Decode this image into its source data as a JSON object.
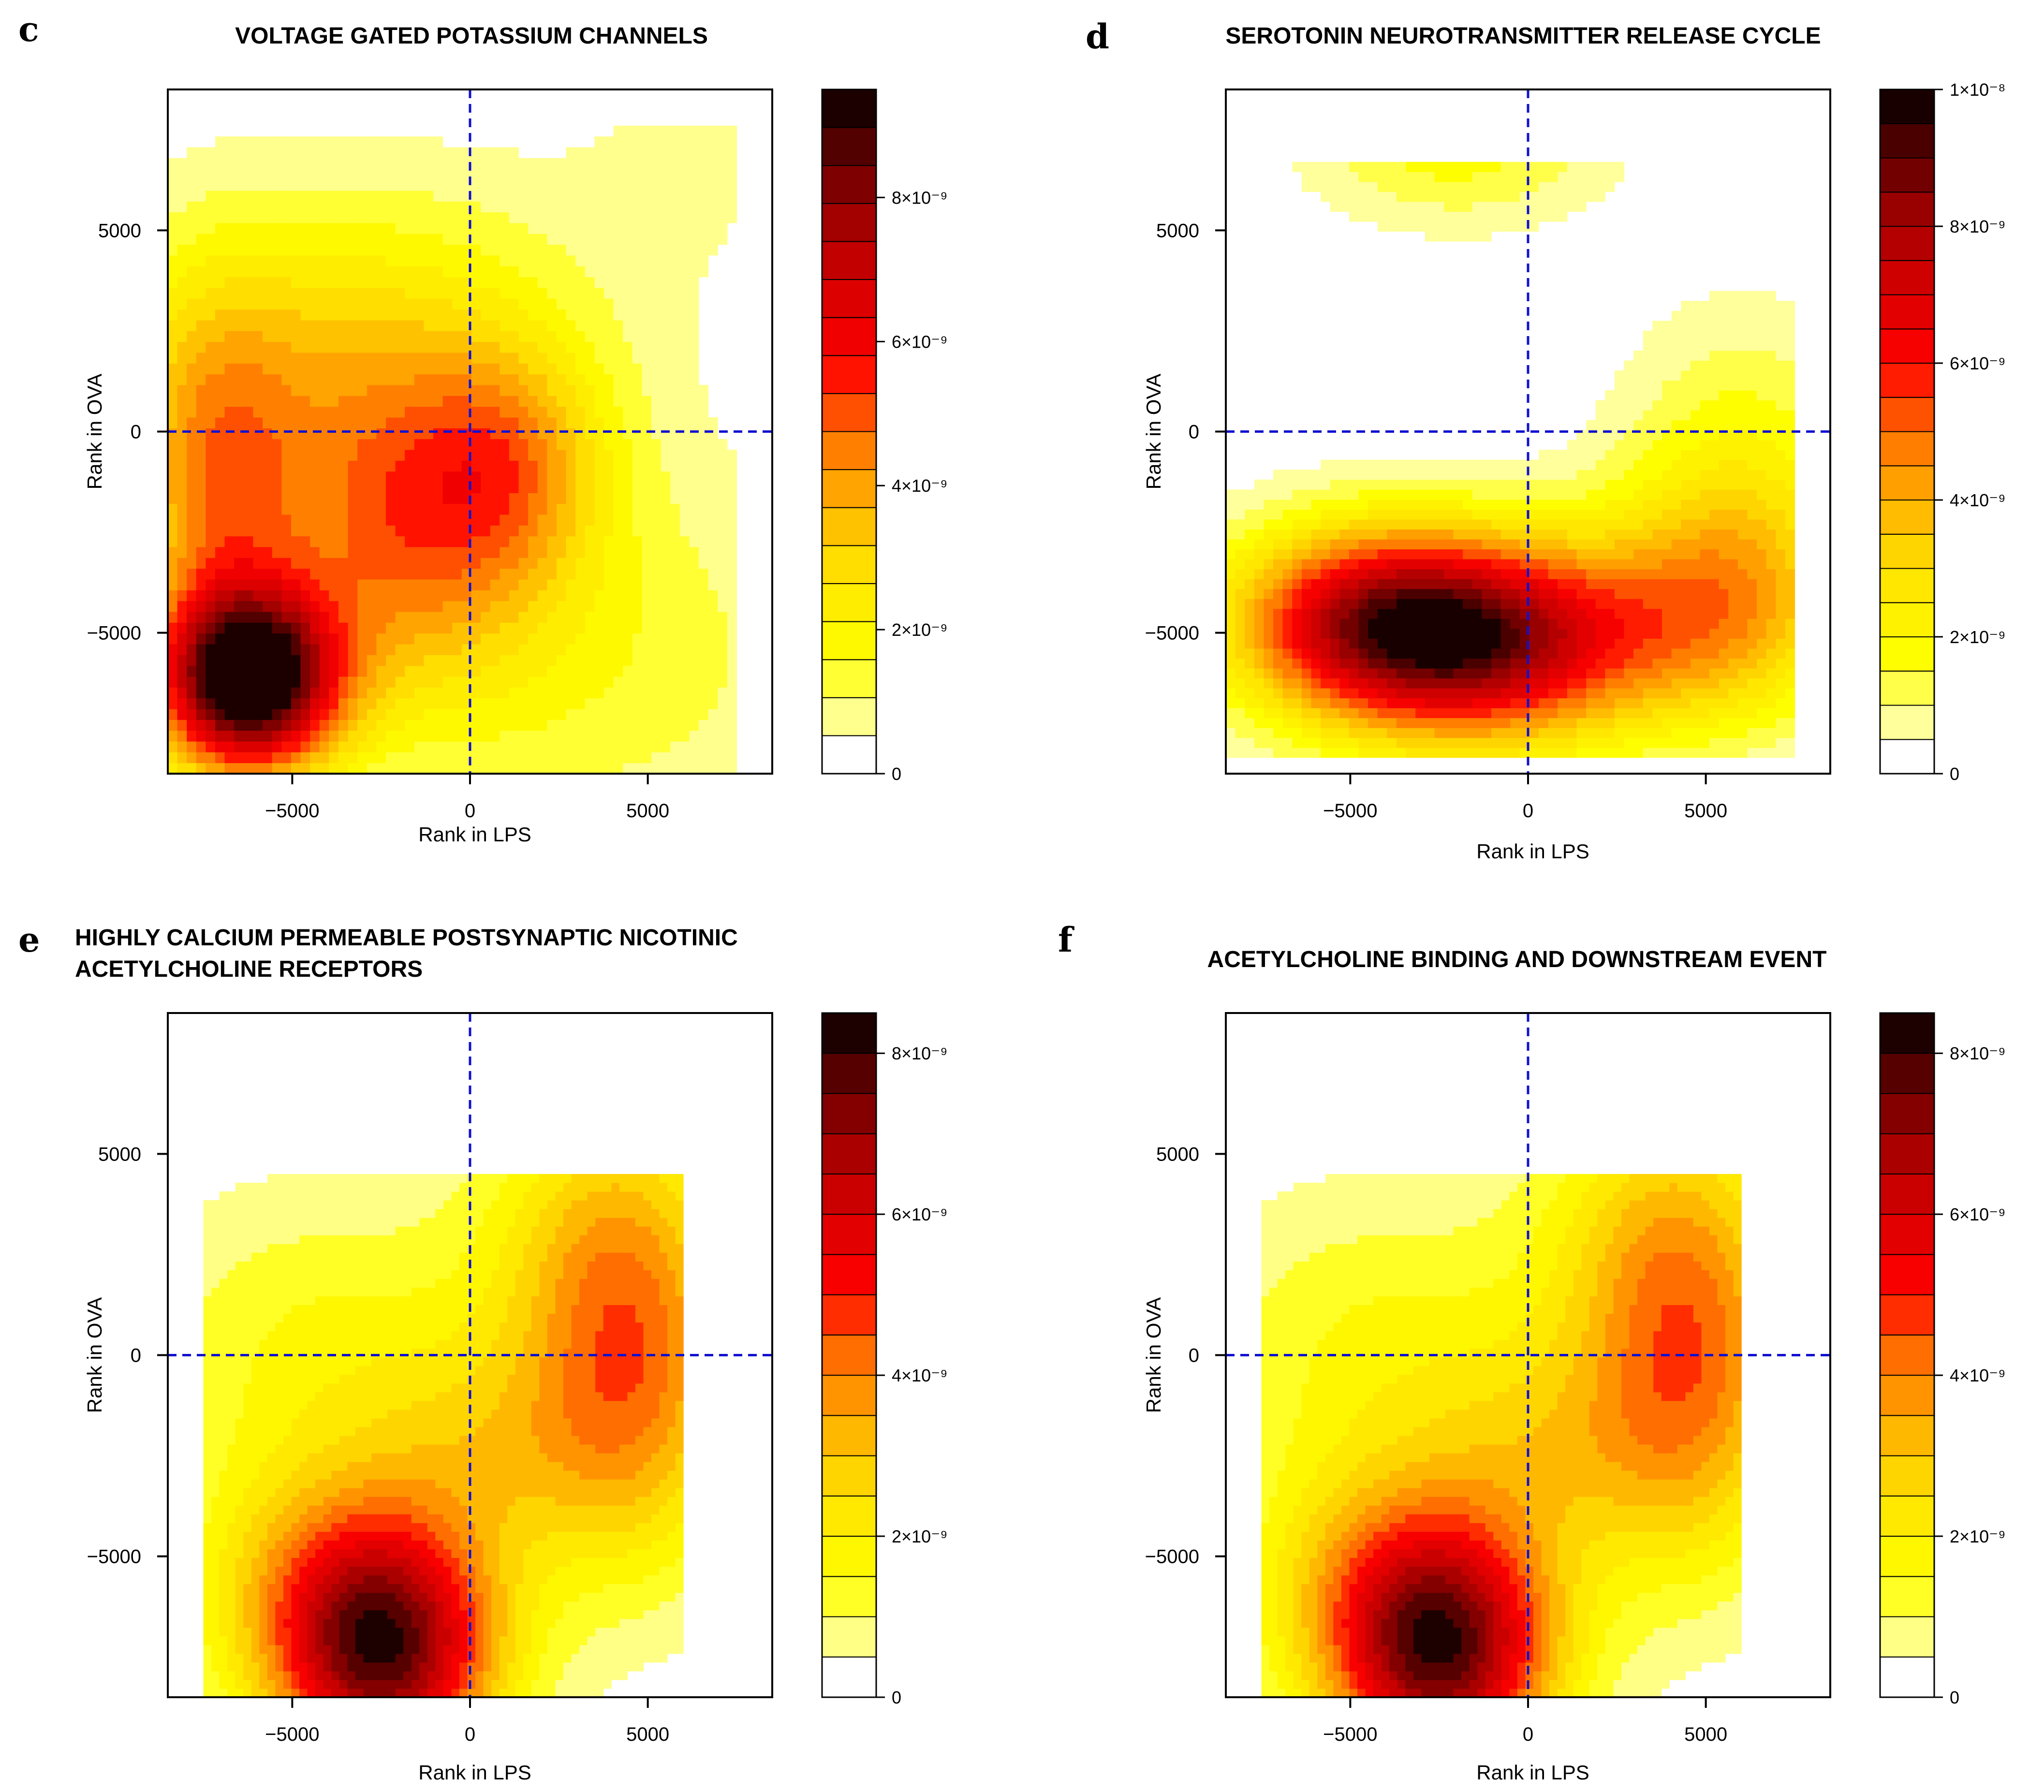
{
  "panels": [
    {
      "letter": "c",
      "title_lines": [
        "VOLTAGE GATED POTASSIUM CHANNELS"
      ],
      "xlabel": "Rank in LPS",
      "ylabel": "Rank in OVA",
      "x_ticks": [
        "−5000",
        "0",
        "5000"
      ],
      "y_ticks": [
        "5000",
        "0",
        "−5000"
      ],
      "colorbar_ticks": [
        "8×10⁻⁹",
        "6×10⁻⁹",
        "4×10⁻⁹",
        "2×10⁻⁹",
        "0"
      ]
    },
    {
      "letter": "d",
      "title_lines": [
        "SEROTONIN NEUROTRANSMITTER RELEASE CYCLE"
      ],
      "xlabel": "Rank in LPS",
      "ylabel": "Rank in OVA",
      "x_ticks": [
        "−5000",
        "0",
        "5000"
      ],
      "y_ticks": [
        "5000",
        "0",
        "−5000"
      ],
      "colorbar_ticks": [
        "1×10⁻⁸",
        "8×10⁻⁹",
        "6×10⁻⁹",
        "4×10⁻⁹",
        "2×10⁻⁹",
        "0"
      ]
    },
    {
      "letter": "e",
      "title_lines": [
        "HIGHLY CALCIUM PERMEABLE POSTSYNAPTIC NICOTINIC",
        "ACETYLCHOLINE RECEPTORS"
      ],
      "xlabel": "Rank in LPS",
      "ylabel": "Rank in OVA",
      "x_ticks": [
        "−5000",
        "0",
        "5000"
      ],
      "y_ticks": [
        "5000",
        "0",
        "−5000"
      ],
      "colorbar_ticks": [
        "8×10⁻⁹",
        "6×10⁻⁹",
        "4×10⁻⁹",
        "2×10⁻⁹",
        "0"
      ]
    },
    {
      "letter": "f",
      "title_lines": [
        "ACETYLCHOLINE BINDING AND DOWNSTREAM EVENT"
      ],
      "xlabel": "Rank in LPS",
      "ylabel": "Rank in OVA",
      "x_ticks": [
        "−5000",
        "0",
        "5000"
      ],
      "y_ticks": [
        "5000",
        "0",
        "−5000"
      ],
      "colorbar_ticks": [
        "8×10⁻⁹",
        "6×10⁻⁹",
        "4×10⁻⁹",
        "2×10⁻⁹",
        "0"
      ]
    }
  ],
  "chart_data": [
    {
      "type": "heatmap",
      "title": "VOLTAGE GATED POTASSIUM CHANNELS",
      "xlabel": "Rank in LPS",
      "ylabel": "Rank in OVA",
      "xlim": [
        -8500,
        8500
      ],
      "ylim": [
        -8500,
        8500
      ],
      "data_extent": {
        "x": [
          -8500,
          7500
        ],
        "y": [
          -8500,
          7600
        ]
      },
      "zlim": [
        0,
        9.5e-09
      ],
      "levels": 18,
      "reference_lines": {
        "x": 0,
        "y": 0,
        "color": "#1010d0",
        "style": "dashed"
      },
      "colorbar_ticks": [
        0,
        2e-09,
        4e-09,
        6e-09,
        8e-09
      ],
      "components": [
        {
          "x": -6200,
          "y": -6200,
          "sx": 1800,
          "sy": 1600,
          "amp": 9.5e-09
        },
        {
          "x": -7200,
          "y": -1500,
          "sx": 1800,
          "sy": 3500,
          "amp": 3.5e-09
        },
        {
          "x": -1800,
          "y": -2500,
          "sx": 2600,
          "sy": 2800,
          "amp": 3.5e-09
        },
        {
          "x": 1300,
          "y": -800,
          "sx": 1800,
          "sy": 2000,
          "amp": 2.2e-09
        },
        {
          "x": -3000,
          "y": 2000,
          "sx": 4500,
          "sy": 3000,
          "amp": 2.5e-09
        },
        {
          "x": 3000,
          "y": -5500,
          "sx": 5000,
          "sy": 3500,
          "amp": 1.5e-09
        },
        {
          "x": 6800,
          "y": 7600,
          "sx": 3000,
          "sy": 3000,
          "amp": 6e-10
        }
      ]
    },
    {
      "type": "heatmap",
      "title": "SEROTONIN NEUROTRANSMITTER RELEASE CYCLE",
      "xlabel": "Rank in LPS",
      "ylabel": "Rank in OVA",
      "xlim": [
        -8500,
        8500
      ],
      "ylim": [
        -8500,
        8500
      ],
      "data_extent": {
        "x": [
          -8500,
          7500
        ],
        "y": [
          -8100,
          6700
        ]
      },
      "zlim": [
        0,
        1e-08
      ],
      "levels": 20,
      "reference_lines": {
        "x": 0,
        "y": 0,
        "color": "#1010d0",
        "style": "dashed"
      },
      "colorbar_ticks": [
        0,
        2e-09,
        4e-09,
        6e-09,
        8e-09,
        1e-08
      ],
      "components": [
        {
          "x": -1000,
          "y": -5200,
          "sx": 3200,
          "sy": 1800,
          "amp": 7.5e-09
        },
        {
          "x": -4800,
          "y": -4700,
          "sx": 2800,
          "sy": 1700,
          "amp": 5.5e-09
        },
        {
          "x": 5500,
          "y": -4500,
          "sx": 2500,
          "sy": 2000,
          "amp": 3e-09
        },
        {
          "x": 6000,
          "y": -1500,
          "sx": 2500,
          "sy": 3000,
          "amp": 2e-09
        },
        {
          "x": -2000,
          "y": 7200,
          "sx": 3000,
          "sy": 1500,
          "amp": 1.8e-09
        }
      ]
    },
    {
      "type": "heatmap",
      "title": "HIGHLY CALCIUM PERMEABLE POSTSYNAPTIC NICOTINIC ACETYLCHOLINE RECEPTORS",
      "xlabel": "Rank in LPS",
      "ylabel": "Rank in OVA",
      "xlim": [
        -8500,
        8500
      ],
      "ylim": [
        -8500,
        8500
      ],
      "data_extent": {
        "x": [
          -7500,
          6000
        ],
        "y": [
          -8500,
          4500
        ]
      },
      "zlim": [
        0,
        8.5e-09
      ],
      "levels": 17,
      "reference_lines": {
        "x": 0,
        "y": 0,
        "color": "#1010d0",
        "style": "dashed"
      },
      "colorbar_ticks": [
        0,
        2e-09,
        4e-09,
        6e-09,
        8e-09
      ],
      "components": [
        {
          "x": -2400,
          "y": -7300,
          "sx": 2300,
          "sy": 2300,
          "amp": 7.5e-09
        },
        {
          "x": -5000,
          "y": -5500,
          "sx": 2500,
          "sy": 2200,
          "amp": 1.5e-09
        },
        {
          "x": 4600,
          "y": -500,
          "sx": 2200,
          "sy": 3500,
          "amp": 3.8e-09
        },
        {
          "x": 3500,
          "y": 3500,
          "sx": 2500,
          "sy": 2500,
          "amp": 1.5e-09
        },
        {
          "x": -4000,
          "y": 0,
          "sx": 4000,
          "sy": 3000,
          "amp": 1.6e-09
        },
        {
          "x": 500,
          "y": -2500,
          "sx": 2500,
          "sy": 2000,
          "amp": 1.5e-09
        }
      ]
    },
    {
      "type": "heatmap",
      "title": "ACETYLCHOLINE BINDING AND DOWNSTREAM EVENT",
      "xlabel": "Rank in LPS",
      "ylabel": "Rank in OVA",
      "xlim": [
        -8500,
        8500
      ],
      "ylim": [
        -8500,
        8500
      ],
      "data_extent": {
        "x": [
          -7500,
          6000
        ],
        "y": [
          -8500,
          4500
        ]
      },
      "zlim": [
        0,
        8.5e-09
      ],
      "levels": 17,
      "reference_lines": {
        "x": 0,
        "y": 0,
        "color": "#1010d0",
        "style": "dashed"
      },
      "colorbar_ticks": [
        0,
        2e-09,
        4e-09,
        6e-09,
        8e-09
      ],
      "components": [
        {
          "x": -2400,
          "y": -7300,
          "sx": 2300,
          "sy": 2300,
          "amp": 7.5e-09
        },
        {
          "x": -5000,
          "y": -5500,
          "sx": 2500,
          "sy": 2200,
          "amp": 1.5e-09
        },
        {
          "x": 4600,
          "y": -500,
          "sx": 2200,
          "sy": 3500,
          "amp": 3.8e-09
        },
        {
          "x": 3500,
          "y": 3500,
          "sx": 2500,
          "sy": 2500,
          "amp": 1.5e-09
        },
        {
          "x": -4000,
          "y": 0,
          "sx": 4000,
          "sy": 3000,
          "amp": 1.6e-09
        },
        {
          "x": 500,
          "y": -2500,
          "sx": 2500,
          "sy": 2000,
          "amp": 1.5e-09
        }
      ]
    }
  ]
}
